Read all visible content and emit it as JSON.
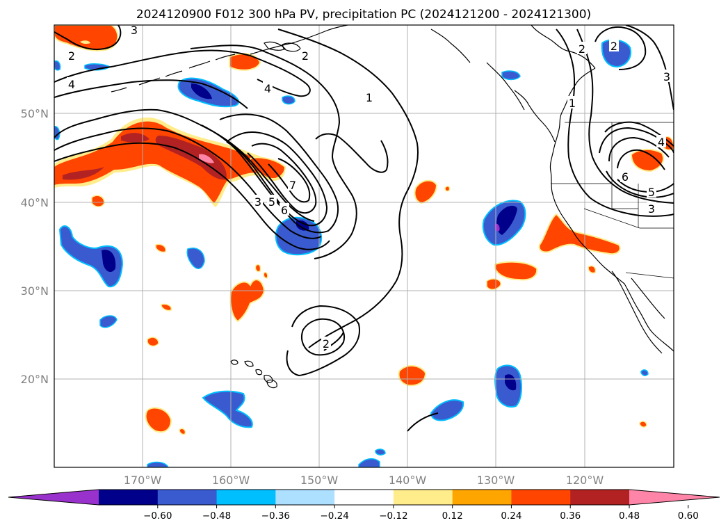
{
  "title": "2024120900 F012 300 hPa PV, precipitation PC (2024121200 - 2024121300)",
  "map": {
    "lon_range": [
      -180,
      -110
    ],
    "lat_range": [
      10,
      60
    ],
    "lon_ticks": [
      {
        "lon": -170,
        "label": "170°W"
      },
      {
        "lon": -160,
        "label": "160°W"
      },
      {
        "lon": -150,
        "label": "150°W"
      },
      {
        "lon": -140,
        "label": "140°W"
      },
      {
        "lon": -130,
        "label": "130°W"
      },
      {
        "lon": -120,
        "label": "120°W"
      }
    ],
    "lat_ticks": [
      {
        "lat": 20,
        "label": "20°N"
      },
      {
        "lat": 30,
        "label": "30°N"
      },
      {
        "lat": 40,
        "label": "40°N"
      },
      {
        "lat": 50,
        "label": "50°N"
      }
    ],
    "gridlines": true
  },
  "colorbar": {
    "orientation": "horizontal",
    "extend": "both",
    "colors": [
      "#9932CC",
      "#00008B",
      "#3A5BD0",
      "#00BFFF",
      "#ADDFFF",
      "#FFFFFF",
      "#FFEC8B",
      "#FFA500",
      "#FF4500",
      "#B22222",
      "#FF85A8"
    ],
    "tick_labels": [
      "−0.60",
      "−0.48",
      "−0.36",
      "−0.24",
      "−0.12",
      "0.12",
      "0.24",
      "0.36",
      "0.48",
      "0.60"
    ]
  },
  "contour_labels": [
    {
      "text": "3"
    },
    {
      "text": "2"
    },
    {
      "text": "4"
    },
    {
      "text": "2"
    },
    {
      "text": "4"
    },
    {
      "text": "1"
    },
    {
      "text": "7"
    },
    {
      "text": "6"
    },
    {
      "text": "5"
    },
    {
      "text": "3"
    },
    {
      "text": "2"
    },
    {
      "text": "2"
    },
    {
      "text": "1"
    },
    {
      "text": "2"
    },
    {
      "text": "3"
    },
    {
      "text": "4"
    },
    {
      "text": "6"
    },
    {
      "text": "5"
    },
    {
      "text": "3"
    }
  ]
}
